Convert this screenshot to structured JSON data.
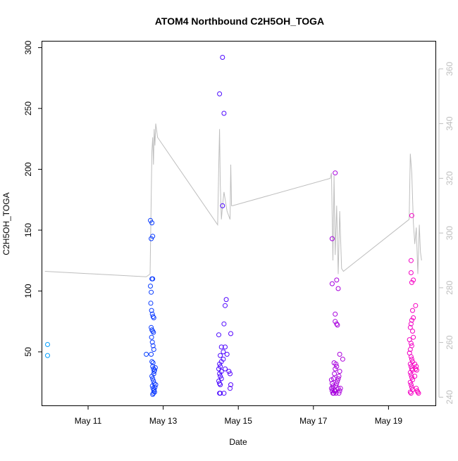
{
  "chart_data": {
    "type": "scatter",
    "title": "ATOM4 Northbound C2H5OH_TOGA",
    "xlabel": "Date",
    "ylabel": "C2H5OH_TOGA",
    "x_unit": "day of May (fractional)",
    "xlim": [
      9.78,
      20.25
    ],
    "ylim": [
      6,
      305
    ],
    "y2lim": [
      237,
      370
    ],
    "x_ticks": [
      {
        "value": 11,
        "label": "May 11"
      },
      {
        "value": 13,
        "label": "May 13"
      },
      {
        "value": 15,
        "label": "May 15"
      },
      {
        "value": 17,
        "label": "May 17"
      },
      {
        "value": 19,
        "label": "May 19"
      }
    ],
    "y_ticks": [
      {
        "value": 50,
        "label": "50"
      },
      {
        "value": 100,
        "label": "100"
      },
      {
        "value": 150,
        "label": "150"
      },
      {
        "value": 200,
        "label": "200"
      },
      {
        "value": 250,
        "label": "250"
      },
      {
        "value": 300,
        "label": "300"
      }
    ],
    "y2_ticks": [
      {
        "value": 240,
        "label": "240"
      },
      {
        "value": 260,
        "label": "260"
      },
      {
        "value": 280,
        "label": "280"
      },
      {
        "value": 300,
        "label": "300"
      },
      {
        "value": 320,
        "label": "320"
      },
      {
        "value": 340,
        "label": "340"
      },
      {
        "value": 360,
        "label": "360"
      }
    ],
    "colors": {
      "axis": "#000000",
      "secondary_axis": "#bebebe",
      "altitude_line": "#bebebe",
      "point_gradient": [
        "#00a0ff",
        "#0044ff",
        "#5a00ff",
        "#a000e0",
        "#ff00c0"
      ]
    },
    "altitude_series": {
      "name": "Secondary axis trace",
      "axis": "right",
      "x": [
        9.85,
        12.55,
        12.65,
        12.7,
        12.72,
        12.74,
        12.76,
        12.78,
        12.8,
        12.85,
        14.45,
        14.48,
        14.5,
        14.52,
        14.55,
        14.58,
        14.62,
        14.7,
        14.78,
        14.8,
        14.82,
        14.85,
        17.45,
        17.48,
        17.52,
        17.55,
        17.58,
        17.62,
        17.66,
        17.7,
        17.75,
        17.8,
        19.55,
        19.58,
        19.62,
        19.66,
        19.7,
        19.74,
        19.78,
        19.82,
        19.85,
        19.88
      ],
      "y": [
        286,
        284,
        285,
        330,
        335,
        325,
        338,
        332,
        340,
        335,
        303,
        325,
        338,
        318,
        305,
        310,
        315,
        308,
        305,
        325,
        310,
        310,
        320,
        322,
        290,
        321,
        292,
        310,
        285,
        308,
        287,
        286,
        305,
        329,
        322,
        304,
        296,
        302,
        285,
        303,
        293,
        290
      ]
    },
    "series": [
      {
        "name": "C2H5OH_TOGA",
        "axis": "left",
        "points": [
          [
            9.92,
            56
          ],
          [
            9.92,
            47
          ],
          [
            12.55,
            48
          ],
          [
            12.66,
            158
          ],
          [
            12.68,
            143
          ],
          [
            12.7,
            156
          ],
          [
            12.72,
            145
          ],
          [
            12.66,
            104
          ],
          [
            12.68,
            99
          ],
          [
            12.7,
            110
          ],
          [
            12.72,
            110
          ],
          [
            12.67,
            90
          ],
          [
            12.69,
            84
          ],
          [
            12.71,
            81
          ],
          [
            12.73,
            79
          ],
          [
            12.75,
            78
          ],
          [
            12.68,
            70
          ],
          [
            12.7,
            68
          ],
          [
            12.72,
            67
          ],
          [
            12.74,
            66
          ],
          [
            12.69,
            62
          ],
          [
            12.71,
            58
          ],
          [
            12.73,
            55
          ],
          [
            12.75,
            52
          ],
          [
            12.68,
            48
          ],
          [
            12.7,
            42
          ],
          [
            12.72,
            38
          ],
          [
            12.74,
            36
          ],
          [
            12.76,
            34
          ],
          [
            12.7,
            30
          ],
          [
            12.72,
            28
          ],
          [
            12.74,
            26
          ],
          [
            12.76,
            24
          ],
          [
            12.71,
            22
          ],
          [
            12.73,
            20
          ],
          [
            12.75,
            18
          ],
          [
            12.77,
            17
          ],
          [
            12.72,
            15
          ],
          [
            12.74,
            16
          ],
          [
            12.76,
            19
          ],
          [
            12.78,
            21
          ],
          [
            12.8,
            23
          ],
          [
            12.75,
            32
          ],
          [
            12.77,
            35
          ],
          [
            12.79,
            37
          ],
          [
            12.73,
            41
          ],
          [
            14.5,
            262
          ],
          [
            14.58,
            292
          ],
          [
            14.62,
            246
          ],
          [
            14.58,
            170
          ],
          [
            14.68,
            93
          ],
          [
            14.65,
            88
          ],
          [
            14.62,
            73
          ],
          [
            14.48,
            64
          ],
          [
            14.8,
            65
          ],
          [
            14.55,
            54
          ],
          [
            14.65,
            54
          ],
          [
            14.6,
            50
          ],
          [
            14.7,
            48
          ],
          [
            14.52,
            47
          ],
          [
            14.5,
            40
          ],
          [
            14.52,
            38
          ],
          [
            14.48,
            36
          ],
          [
            14.55,
            34
          ],
          [
            14.5,
            32
          ],
          [
            14.52,
            30
          ],
          [
            14.55,
            28
          ],
          [
            14.48,
            26
          ],
          [
            14.5,
            24
          ],
          [
            14.52,
            23
          ],
          [
            14.5,
            16
          ],
          [
            14.52,
            16
          ],
          [
            14.62,
            16
          ],
          [
            14.75,
            34
          ],
          [
            14.78,
            32
          ],
          [
            14.8,
            23
          ],
          [
            14.78,
            20
          ],
          [
            14.55,
            42
          ],
          [
            14.6,
            44
          ],
          [
            14.65,
            36
          ],
          [
            17.58,
            197
          ],
          [
            17.5,
            143
          ],
          [
            17.5,
            106
          ],
          [
            17.62,
            109
          ],
          [
            17.66,
            102
          ],
          [
            17.58,
            81
          ],
          [
            17.58,
            75
          ],
          [
            17.62,
            73
          ],
          [
            17.64,
            72
          ],
          [
            17.48,
            27
          ],
          [
            17.5,
            24
          ],
          [
            17.52,
            22
          ],
          [
            17.48,
            20
          ],
          [
            17.5,
            18
          ],
          [
            17.52,
            16
          ],
          [
            17.54,
            28
          ],
          [
            17.56,
            32
          ],
          [
            17.58,
            36
          ],
          [
            17.6,
            40
          ],
          [
            17.62,
            38
          ],
          [
            17.55,
            41
          ],
          [
            17.7,
            48
          ],
          [
            17.78,
            44
          ],
          [
            17.66,
            20
          ],
          [
            17.7,
            18
          ],
          [
            17.72,
            20
          ],
          [
            17.68,
            16
          ],
          [
            17.52,
            20
          ],
          [
            17.56,
            18
          ],
          [
            17.6,
            22
          ],
          [
            17.62,
            24
          ],
          [
            17.64,
            26
          ],
          [
            17.66,
            28
          ],
          [
            17.68,
            30
          ],
          [
            17.7,
            34
          ],
          [
            17.54,
            16
          ],
          [
            17.58,
            18
          ],
          [
            17.6,
            16
          ],
          [
            19.62,
            162
          ],
          [
            19.6,
            125
          ],
          [
            19.6,
            115
          ],
          [
            19.62,
            107
          ],
          [
            19.66,
            109
          ],
          [
            19.72,
            88
          ],
          [
            19.64,
            84
          ],
          [
            19.66,
            78
          ],
          [
            19.62,
            76
          ],
          [
            19.6,
            73
          ],
          [
            19.58,
            70
          ],
          [
            19.64,
            67
          ],
          [
            19.66,
            62
          ],
          [
            19.56,
            60
          ],
          [
            19.6,
            57
          ],
          [
            19.62,
            55
          ],
          [
            19.58,
            52
          ],
          [
            19.56,
            49
          ],
          [
            19.6,
            46
          ],
          [
            19.62,
            44
          ],
          [
            19.64,
            42
          ],
          [
            19.58,
            40
          ],
          [
            19.6,
            38
          ],
          [
            19.62,
            36
          ],
          [
            19.64,
            35
          ],
          [
            19.58,
            33
          ],
          [
            19.6,
            31
          ],
          [
            19.62,
            29
          ],
          [
            19.64,
            27
          ],
          [
            19.58,
            25
          ],
          [
            19.6,
            23
          ],
          [
            19.62,
            21
          ],
          [
            19.64,
            19
          ],
          [
            19.58,
            17
          ],
          [
            19.6,
            16
          ],
          [
            19.7,
            40
          ],
          [
            19.74,
            38
          ],
          [
            19.72,
            36
          ],
          [
            19.75,
            35
          ],
          [
            19.7,
            30
          ],
          [
            19.74,
            20
          ],
          [
            19.76,
            18
          ],
          [
            19.78,
            17
          ],
          [
            19.8,
            16
          ]
        ]
      }
    ]
  }
}
